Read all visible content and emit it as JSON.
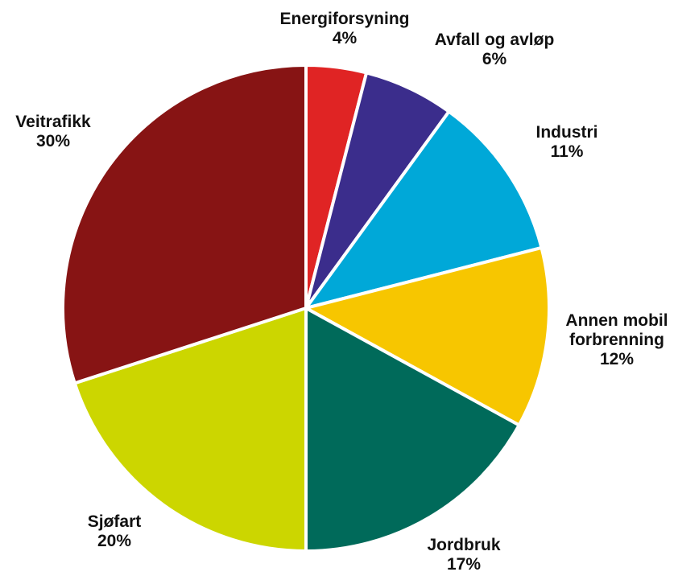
{
  "chart_data": {
    "type": "pie",
    "title": "",
    "slices": [
      {
        "name": "Energiforsyning",
        "label_lines": [
          "Energiforsyning"
        ],
        "value": 4,
        "value_label": "4%",
        "color": "#e02424"
      },
      {
        "name": "Avfall og avløp",
        "label_lines": [
          "Avfall og avløp"
        ],
        "value": 6,
        "value_label": "6%",
        "color": "#3b2d8c"
      },
      {
        "name": "Industri",
        "label_lines": [
          "Industri"
        ],
        "value": 11,
        "value_label": "11%",
        "color": "#00a8d8"
      },
      {
        "name": "Annen mobil forbrenning",
        "label_lines": [
          "Annen mobil",
          "forbrenning"
        ],
        "value": 12,
        "value_label": "12%",
        "color": "#f7c600"
      },
      {
        "name": "Jordbruk",
        "label_lines": [
          "Jordbruk"
        ],
        "value": 17,
        "value_label": "17%",
        "color": "#006a5a"
      },
      {
        "name": "Sjøfart",
        "label_lines": [
          "Sjøfart"
        ],
        "value": 20,
        "value_label": "20%",
        "color": "#ccd600"
      },
      {
        "name": "Veitrafikk",
        "label_lines": [
          "Veitrafikk"
        ],
        "value": 30,
        "value_label": "30%",
        "color": "#871414"
      }
    ]
  }
}
